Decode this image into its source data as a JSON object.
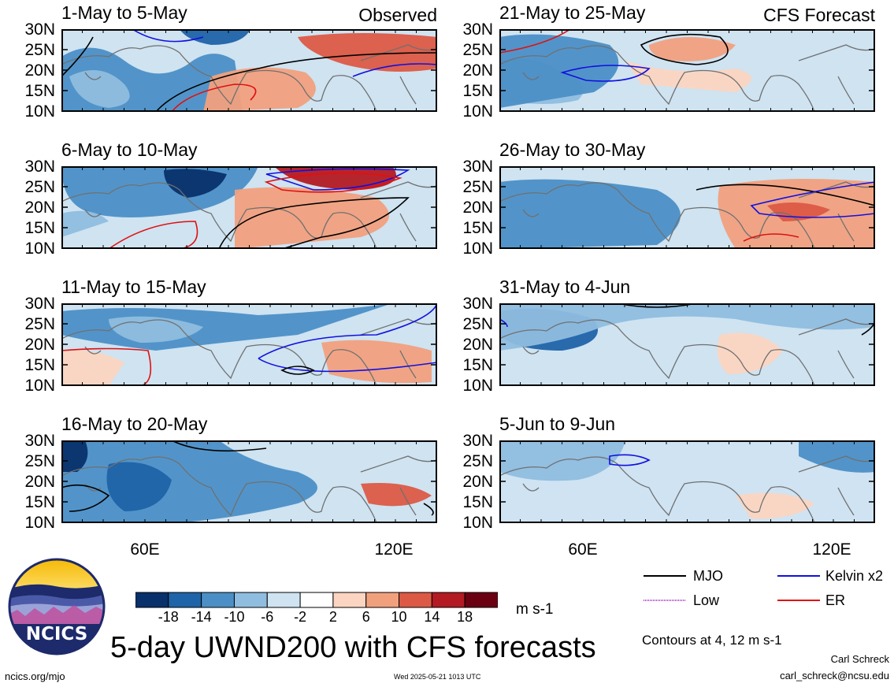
{
  "panels": [
    {
      "title": "1-May to 5-May",
      "tag": "Observed"
    },
    {
      "title": "21-May to 25-May",
      "tag": "CFS Forecast"
    },
    {
      "title": "6-May to 10-May",
      "tag": ""
    },
    {
      "title": "26-May to 30-May",
      "tag": ""
    },
    {
      "title": "11-May to 15-May",
      "tag": ""
    },
    {
      "title": "31-May to 4-Jun",
      "tag": ""
    },
    {
      "title": "16-May to 20-May",
      "tag": ""
    },
    {
      "title": "5-Jun to 9-Jun",
      "tag": ""
    }
  ],
  "lat_labels": [
    "30N",
    "25N",
    "20N",
    "15N",
    "10N"
  ],
  "lon_labels": [
    "60E",
    "120E"
  ],
  "colorbar": {
    "ticks": [
      "-18",
      "-14",
      "-10",
      "-6",
      "-2",
      "2",
      "6",
      "10",
      "14",
      "18"
    ],
    "colors": [
      "#08306b",
      "#1f63a8",
      "#4b8fc6",
      "#8fbddf",
      "#cfe3f1",
      "#ffffff",
      "#fbd5c1",
      "#f1a07e",
      "#dc5a45",
      "#b31a22",
      "#6b0012"
    ],
    "units": "m s-1"
  },
  "legend": {
    "items": [
      {
        "label": "MJO",
        "color": "#000000"
      },
      {
        "label": "Kelvin x2",
        "color": "#1010e0"
      },
      {
        "label": "Low",
        "color": "#b040d0"
      },
      {
        "label": "ER",
        "color": "#e01010"
      }
    ],
    "note": "Contours at 4, 12 m s-1"
  },
  "footer": {
    "title": "5-day UWND200 with CFS forecasts",
    "logo_text": "NCICS",
    "site": "ncics.org/mjo",
    "timestamp": "Wed 2025-05-21 1013 UTC",
    "author": "Carl Schreck",
    "email": "carl_schreck@ncsu.edu"
  }
}
